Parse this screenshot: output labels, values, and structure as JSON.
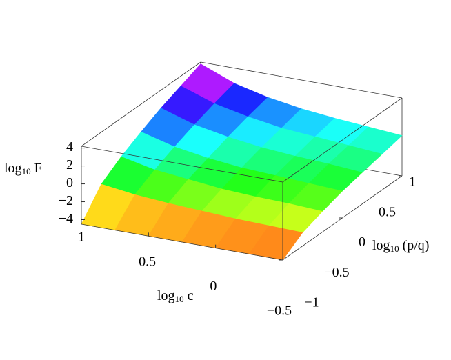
{
  "chart_data": {
    "type": "surface",
    "z_label": {
      "base": "log",
      "sub": "10",
      "rest": " F"
    },
    "x_label": {
      "base": "log",
      "sub": "10",
      "rest": " c"
    },
    "y_label": {
      "base": "log",
      "sub": "10",
      "rest": " (p/q)"
    },
    "x": [
      1,
      0.75,
      0.5,
      0.25,
      0,
      -0.25,
      -0.5
    ],
    "y": [
      -1,
      -0.6667,
      -0.3333,
      0,
      0.3333,
      0.6667,
      1
    ],
    "z": [
      [
        -4.5,
        -1.6,
        -0.1,
        1.1,
        2.2,
        3.1,
        4.0
      ],
      [
        -4.5,
        -2.1,
        -0.9,
        0.1,
        1.0,
        1.8,
        2.5
      ],
      [
        -4.5,
        -2.4,
        -1.3,
        -0.5,
        0.3,
        1.0,
        1.6
      ],
      [
        -4.5,
        -2.6,
        -1.7,
        -0.9,
        -0.2,
        0.4,
        1.0
      ],
      [
        -4.5,
        -2.8,
        -1.9,
        -1.1,
        -0.5,
        0.1,
        0.6
      ],
      [
        -4.5,
        -2.9,
        -2.0,
        -1.3,
        -0.7,
        -0.2,
        0.3
      ],
      [
        -4.5,
        -3.0,
        -2.2,
        -1.5,
        -1.0,
        -0.5,
        0.0
      ]
    ],
    "xlim": [
      1,
      -0.5
    ],
    "ylim": [
      -1,
      1
    ],
    "zlim": [
      -4.5,
      4.2
    ],
    "xticks": [
      1,
      0.5,
      0,
      {
        "value": -0.5,
        "label": "−0.5"
      }
    ],
    "yticks": [
      {
        "value": -1,
        "label": "−1"
      },
      {
        "value": -0.5,
        "label": "−0.5"
      },
      0,
      0.5,
      1
    ],
    "zticks": [
      {
        "value": -4,
        "label": "−4"
      },
      {
        "value": -2,
        "label": "−2"
      },
      0,
      2,
      4
    ]
  }
}
